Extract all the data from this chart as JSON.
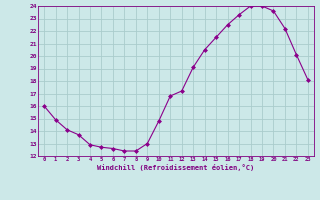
{
  "x": [
    0,
    1,
    2,
    3,
    4,
    5,
    6,
    7,
    8,
    9,
    10,
    11,
    12,
    13,
    14,
    15,
    16,
    17,
    18,
    19,
    20,
    21,
    22,
    23
  ],
  "y": [
    16.0,
    14.9,
    14.1,
    13.7,
    12.9,
    12.7,
    12.6,
    12.4,
    12.4,
    13.0,
    14.8,
    16.8,
    17.2,
    19.1,
    20.5,
    21.5,
    22.5,
    23.3,
    24.0,
    24.0,
    23.6,
    22.2,
    20.1,
    18.1
  ],
  "line_color": "#8b008b",
  "marker": "D",
  "marker_size": 2,
  "bg_color": "#cce8e8",
  "grid_color": "#aacccc",
  "xlabel": "Windchill (Refroidissement éolien,°C)",
  "xlim": [
    -0.5,
    23.5
  ],
  "ylim": [
    12,
    24
  ],
  "yticks": [
    12,
    13,
    14,
    15,
    16,
    17,
    18,
    19,
    20,
    21,
    22,
    23,
    24
  ],
  "xticks": [
    0,
    1,
    2,
    3,
    4,
    5,
    6,
    7,
    8,
    9,
    10,
    11,
    12,
    13,
    14,
    15,
    16,
    17,
    18,
    19,
    20,
    21,
    22,
    23
  ],
  "axis_color": "#800080",
  "tick_color": "#800080"
}
